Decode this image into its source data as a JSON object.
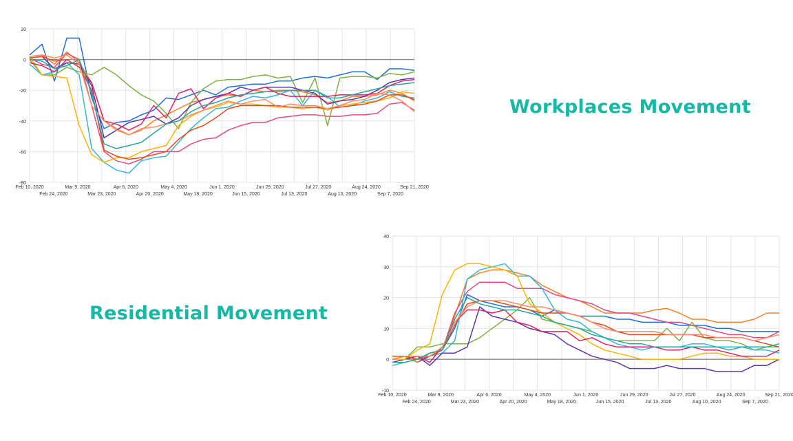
{
  "colors": {
    "title": "#16b8a6"
  },
  "chart_data": [
    {
      "type": "line",
      "title": "Workplaces Movement",
      "xlabel": "",
      "ylabel": "",
      "ylim": [
        -80,
        20
      ],
      "yticks": [
        20,
        0,
        -20,
        -40,
        -60,
        -80
      ],
      "grid": true,
      "legend": "none",
      "xtick_labels": [
        "Feb 10, 2020",
        "Feb 24, 2020",
        "Mar 9, 2020",
        "Mar 23, 2020",
        "Apr 6, 2020",
        "Apr 20, 2020",
        "May 4, 2020",
        "May 18, 2020",
        "Jun 1, 2020",
        "Jun 15, 2020",
        "Jun 29, 2020",
        "Jul 13, 2020",
        "Jul 27, 2020",
        "Aug 10, 2020",
        "Aug 24, 2020",
        "Sep 7, 2020",
        "Sep 21, 2020"
      ],
      "reference_line": 0,
      "series": [
        {
          "color": "#1e6fd9",
          "values": [
            3,
            10,
            -14,
            14,
            14,
            -25,
            -45,
            -41,
            -40,
            -36,
            -33,
            -25,
            -26,
            -23,
            -20,
            -23,
            -18,
            -17,
            -16,
            -16,
            -14,
            -14,
            -12,
            -11,
            -12,
            -10,
            -8,
            -8,
            -13,
            -6,
            -6,
            -7
          ]
        },
        {
          "color": "#f48024",
          "values": [
            2,
            3,
            -3,
            5,
            -2,
            -15,
            -40,
            -45,
            -49,
            -46,
            -40,
            -36,
            -32,
            -28,
            -26,
            -24,
            -23,
            -24,
            -20,
            -21,
            -20,
            -20,
            -21,
            -23,
            -28,
            -27,
            -24,
            -24,
            -23,
            -20,
            -22,
            -27
          ]
        },
        {
          "color": "#e8497a",
          "values": [
            1,
            -3,
            -5,
            4,
            0,
            -30,
            -60,
            -66,
            -68,
            -65,
            -60,
            -60,
            -60,
            -55,
            -52,
            -51,
            -46,
            -43,
            -41,
            -41,
            -38,
            -37,
            -36,
            -36,
            -37,
            -37,
            -36,
            -36,
            -35,
            -29,
            -28,
            -33
          ]
        },
        {
          "color": "#7cb342",
          "values": [
            0,
            -10,
            -10,
            -5,
            -8,
            -10,
            -5,
            -10,
            -17,
            -23,
            -27,
            -35,
            -45,
            -28,
            -19,
            -14,
            -13,
            -13,
            -11,
            -10,
            -12,
            -11,
            -28,
            -12,
            -43,
            -12,
            -11,
            -11,
            -12,
            -9,
            -10,
            -8
          ]
        },
        {
          "color": "#33b5e5",
          "values": [
            -3,
            -10,
            -8,
            -2,
            -10,
            -58,
            -67,
            -72,
            -74,
            -66,
            -64,
            -63,
            -54,
            -45,
            -38,
            -32,
            -31,
            -27,
            -24,
            -25,
            -23,
            -20,
            -30,
            -20,
            -24,
            -31,
            -30,
            -27,
            -25,
            -21,
            -24,
            -25
          ]
        },
        {
          "color": "#5e35b1",
          "values": [
            1,
            2,
            -6,
            -2,
            -3,
            -17,
            -51,
            -46,
            -41,
            -39,
            -37,
            -42,
            -38,
            -30,
            -26,
            -24,
            -22,
            -18,
            -20,
            -18,
            -18,
            -18,
            -20,
            -22,
            -29,
            -27,
            -26,
            -24,
            -20,
            -15,
            -13,
            -12
          ]
        },
        {
          "color": "#ffb300",
          "values": [
            2,
            -10,
            -11,
            -12,
            -43,
            -62,
            -67,
            -64,
            -64,
            -60,
            -58,
            -56,
            -43,
            -37,
            -33,
            -31,
            -28,
            -29,
            -29,
            -30,
            -31,
            -31,
            -32,
            -31,
            -33,
            -30,
            -29,
            -28,
            -27,
            -25,
            -21,
            -22
          ]
        },
        {
          "color": "#e91e63",
          "values": [
            -2,
            -4,
            -8,
            0,
            -5,
            -15,
            -40,
            -42,
            -46,
            -42,
            -30,
            -38,
            -22,
            -19,
            -32,
            -25,
            -22,
            -24,
            -20,
            -18,
            -22,
            -24,
            -24,
            -24,
            -24,
            -23,
            -23,
            -23,
            -22,
            -17,
            -14,
            -13
          ]
        },
        {
          "color": "#e64a19",
          "values": [
            1,
            2,
            -1,
            0,
            -5,
            -20,
            -59,
            -63,
            -65,
            -64,
            -62,
            -60,
            -52,
            -46,
            -43,
            -38,
            -32,
            -30,
            -30,
            -30,
            -30,
            -31,
            -31,
            -31,
            -32,
            -31,
            -30,
            -29,
            -27,
            -23,
            -23,
            -26
          ]
        },
        {
          "color": "#ff8a65",
          "values": [
            2,
            3,
            1,
            3,
            -3,
            -30,
            -40,
            -46,
            -49,
            -45,
            -44,
            -42,
            -40,
            -36,
            -33,
            -30,
            -27,
            -29,
            -27,
            -26,
            -31,
            -29,
            -30,
            -30,
            -32,
            -30,
            -27,
            -26,
            -22,
            -23,
            -27,
            -34
          ]
        },
        {
          "color": "#26a69a",
          "values": [
            0,
            -1,
            -6,
            -4,
            0,
            -22,
            -55,
            -58,
            -56,
            -54,
            -48,
            -42,
            -40,
            -34,
            -30,
            -28,
            -25,
            -23,
            -22,
            -21,
            -21,
            -20,
            -20,
            -20,
            -25,
            -25,
            -23,
            -21,
            -19,
            -17,
            -16,
            -15
          ]
        }
      ]
    },
    {
      "type": "line",
      "title": "Residential Movement",
      "xlabel": "",
      "ylabel": "",
      "ylim": [
        -10,
        40
      ],
      "yticks": [
        40,
        30,
        20,
        10,
        0,
        -10
      ],
      "grid": true,
      "legend": "none",
      "xtick_labels": [
        "Feb 10, 2020",
        "Feb 24, 2020",
        "Mar 9, 2020",
        "Mar 23, 2020",
        "Apr 6, 2020",
        "Apr 20, 2020",
        "May 4, 2020",
        "May 18, 2020",
        "Jun 1, 2020",
        "Jun 15, 2020",
        "Jun 29, 2020",
        "Jul 13, 2020",
        "Jul 27, 2020",
        "Aug 10, 2020",
        "Aug 24, 2020",
        "Sep 7, 2020",
        "Sep 21, 2020"
      ],
      "reference_line": 0,
      "series": [
        {
          "color": "#1e6fd9",
          "values": [
            0,
            1,
            -1,
            1,
            3,
            10,
            21,
            19,
            18,
            17,
            17,
            16,
            14,
            16,
            15,
            14,
            14,
            14,
            13,
            13,
            12,
            12,
            12,
            11,
            11,
            11,
            10,
            10,
            9,
            9,
            9,
            9
          ]
        },
        {
          "color": "#f48024",
          "values": [
            1,
            1,
            -1,
            2,
            3,
            14,
            26,
            28,
            29,
            29,
            28,
            27,
            24,
            22,
            20,
            19,
            17,
            15,
            15,
            15,
            15,
            16,
            16.5,
            15,
            13,
            13,
            12,
            12,
            12,
            13,
            15,
            15
          ]
        },
        {
          "color": "#e8497a",
          "values": [
            1,
            1,
            0,
            2,
            3,
            15,
            22,
            25,
            25,
            25,
            23,
            23,
            23,
            21,
            20,
            19,
            18,
            16,
            15,
            15,
            14,
            13,
            12,
            12,
            11,
            10,
            9,
            8,
            8,
            7,
            7,
            9
          ]
        },
        {
          "color": "#7cb342",
          "values": [
            -1,
            0,
            4,
            4,
            5,
            5,
            5,
            7,
            10,
            13,
            16,
            20,
            13,
            12,
            11,
            10,
            9,
            7,
            6,
            6,
            6,
            6,
            10,
            6,
            12,
            7,
            6,
            6,
            5,
            3,
            4,
            4
          ]
        },
        {
          "color": "#33b5e5",
          "values": [
            -2,
            -1,
            0,
            1,
            2,
            6,
            26,
            29,
            30,
            31,
            27,
            27,
            23,
            16,
            13,
            12,
            9,
            7,
            5,
            4,
            3,
            4,
            4,
            4,
            5,
            5,
            4,
            4,
            4,
            3,
            3,
            2
          ]
        },
        {
          "color": "#5e35b1",
          "values": [
            -1,
            0,
            1,
            -2,
            2,
            2,
            4,
            17,
            14,
            13,
            12,
            10,
            9,
            8,
            5,
            3,
            1,
            0,
            -1,
            -3,
            -3,
            -3,
            -2,
            -3,
            -3,
            -3,
            -4,
            -4,
            -4,
            -2,
            -2,
            0
          ]
        },
        {
          "color": "#ffb300",
          "values": [
            0,
            0,
            3,
            5,
            21,
            29,
            31,
            31,
            30,
            29,
            27,
            18,
            15,
            12,
            10,
            8,
            5,
            3,
            2,
            1,
            0,
            0,
            0,
            0,
            1,
            2,
            2,
            1,
            1,
            0,
            0,
            0
          ]
        },
        {
          "color": "#e91e63",
          "values": [
            0,
            1,
            1,
            -1,
            4,
            12,
            16,
            16,
            15,
            16,
            12,
            11,
            9,
            9,
            9,
            6,
            7,
            5,
            4,
            4,
            4,
            4,
            3,
            3,
            4,
            3,
            3,
            2,
            1,
            1,
            1,
            3
          ]
        },
        {
          "color": "#e64a19",
          "values": [
            1,
            1,
            0,
            1,
            3,
            11,
            18,
            19,
            19,
            18,
            17,
            16,
            15,
            15,
            15,
            14,
            12,
            11,
            9,
            8,
            8,
            8,
            8,
            8,
            8,
            7,
            7,
            7,
            7,
            6,
            5,
            4
          ]
        },
        {
          "color": "#ff8a65",
          "values": [
            0,
            1,
            1,
            1,
            4,
            12,
            17,
            19,
            19,
            19,
            18,
            17,
            17,
            16,
            15,
            14,
            12,
            10,
            9,
            9,
            9,
            9,
            8,
            8,
            8,
            8,
            7,
            7,
            7,
            6,
            7,
            8
          ]
        },
        {
          "color": "#26a69a",
          "values": [
            -1,
            -1,
            0,
            2,
            3,
            13,
            20,
            18,
            17,
            16,
            16,
            15,
            14,
            12,
            11,
            10,
            8,
            7,
            6,
            5,
            5,
            4,
            4,
            4,
            4,
            4,
            4,
            3,
            4,
            4,
            4,
            5
          ]
        }
      ]
    }
  ]
}
